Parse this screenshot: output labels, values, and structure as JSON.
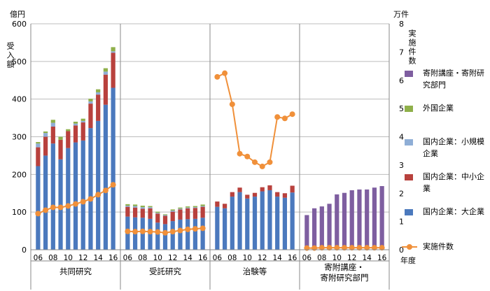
{
  "chart_data": {
    "type": "bar",
    "y_left": {
      "unit": "億円",
      "label": "受入額",
      "ticks": [
        "0",
        "100",
        "200",
        "300",
        "400",
        "500",
        "600"
      ],
      "range": [
        0,
        600
      ]
    },
    "y_right": {
      "unit": "万件",
      "label": "実施件数",
      "ticks": [
        "0",
        "1",
        "2",
        "3",
        "4",
        "5",
        "6",
        "7",
        "8"
      ],
      "range": [
        0,
        8
      ]
    },
    "x_axis_unit": "年度",
    "tick_labels": [
      "06",
      "08",
      "10",
      "12",
      "14",
      "16"
    ],
    "groups": [
      {
        "name": "共同研究",
        "years": [
          "06",
          "07",
          "08",
          "09",
          "10",
          "11",
          "12",
          "13",
          "14",
          "15",
          "16"
        ],
        "series": {
          "大企業": [
            222,
            250,
            282,
            240,
            270,
            285,
            290,
            323,
            342,
            385,
            430
          ],
          "中小企業": [
            50,
            50,
            45,
            52,
            45,
            45,
            48,
            65,
            70,
            80,
            93
          ],
          "小規模企業": [
            10,
            10,
            10,
            0,
            0,
            5,
            4,
            6,
            6,
            8,
            4
          ],
          "外国企業": [
            4,
            4,
            8,
            8,
            5,
            5,
            6,
            7,
            8,
            9,
            11
          ]
        },
        "counts": [
          1.28,
          1.4,
          1.5,
          1.5,
          1.55,
          1.62,
          1.7,
          1.8,
          1.95,
          2.1,
          2.3
        ]
      },
      {
        "name": "受託研究",
        "years": [
          "06",
          "07",
          "08",
          "09",
          "10",
          "11",
          "12",
          "13",
          "14",
          "15",
          "16"
        ],
        "series": {
          "大企業": [
            88,
            86,
            85,
            82,
            72,
            68,
            76,
            80,
            81,
            82,
            85
          ],
          "中小企業": [
            26,
            26,
            24,
            28,
            24,
            22,
            25,
            27,
            29,
            29,
            29
          ],
          "小規模企業": [
            3,
            4,
            4,
            3,
            2,
            2,
            3,
            2,
            2,
            2,
            2
          ],
          "外国企業": [
            4,
            4,
            4,
            3,
            3,
            2,
            3,
            3,
            3,
            3,
            4
          ]
        },
        "counts": [
          0.65,
          0.64,
          0.65,
          0.64,
          0.63,
          0.6,
          0.64,
          0.68,
          0.72,
          0.74,
          0.76
        ]
      },
      {
        "name": "治験等",
        "years": [
          "06",
          "07",
          "08",
          "09",
          "10",
          "11",
          "12",
          "13",
          "14",
          "15",
          "16"
        ],
        "series": {
          "大企業": [
            114,
            110,
            141,
            153,
            136,
            141,
            155,
            158,
            141,
            138,
            152
          ],
          "中小企業": [
            14,
            12,
            12,
            12,
            10,
            10,
            11,
            13,
            12,
            12,
            18
          ]
        },
        "counts": [
          6.12,
          6.25,
          5.15,
          3.4,
          3.3,
          3.1,
          2.95,
          3.1,
          4.7,
          4.65,
          4.8
        ]
      },
      {
        "name": "寄附講座・寄附研究部門",
        "years": [
          "06",
          "07",
          "08",
          "09",
          "10",
          "11",
          "12",
          "13",
          "14",
          "15",
          "16"
        ],
        "series": {
          "寄附講座・寄附研究部門": [
            92,
            110,
            115,
            122,
            147,
            151,
            158,
            160,
            160,
            165,
            169
          ]
        },
        "counts": [
          0.06,
          0.06,
          0.07,
          0.07,
          0.07,
          0.07,
          0.07,
          0.07,
          0.07,
          0.07,
          0.07
        ]
      }
    ],
    "legend": {
      "position": "right",
      "items": [
        {
          "key": "寄附講座・寄附研究部門",
          "label": "寄附講座・寄附研究部門",
          "color": "#7e5ea0"
        },
        {
          "key": "外国企業",
          "label": "外国企業",
          "color": "#8fb04a"
        },
        {
          "key": "小規模企業",
          "label": "国内企業：小規模企業",
          "color": "#8faed6"
        },
        {
          "key": "中小企業",
          "label": "国内企業：中小企業",
          "color": "#b8413d"
        },
        {
          "key": "大企業",
          "label": "国内企業：大企業",
          "color": "#4b79bd"
        },
        {
          "key": "実施件数",
          "label": "実施件数",
          "color": "#f0903a",
          "marker": "line-dot"
        }
      ]
    },
    "grid": true
  }
}
